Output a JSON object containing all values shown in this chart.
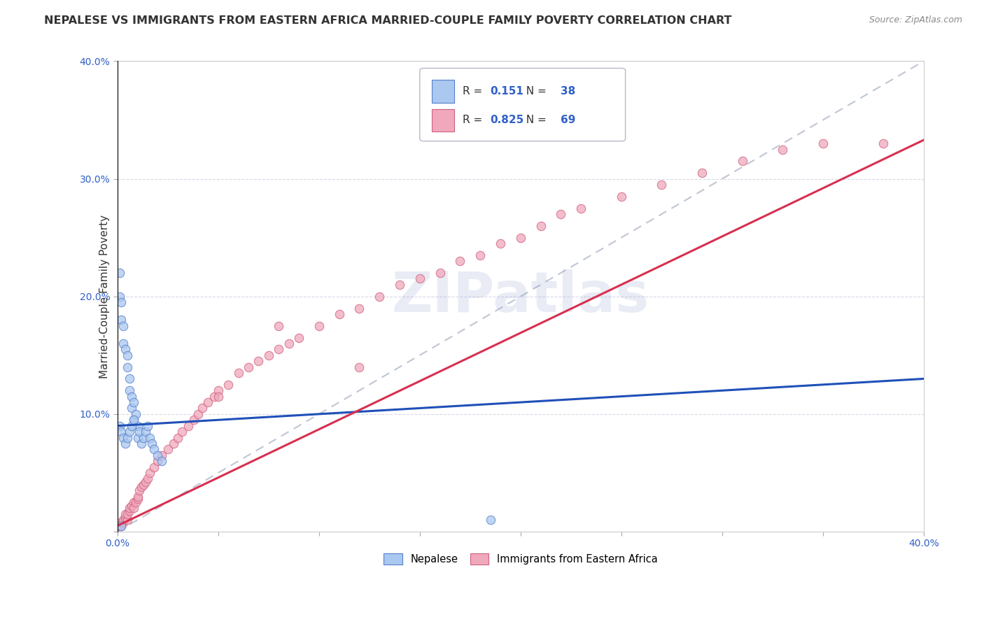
{
  "title": "NEPALESE VS IMMIGRANTS FROM EASTERN AFRICA MARRIED-COUPLE FAMILY POVERTY CORRELATION CHART",
  "source": "Source: ZipAtlas.com",
  "ylabel": "Married-Couple Family Poverty",
  "xlim": [
    0.0,
    0.4
  ],
  "ylim": [
    0.0,
    0.4
  ],
  "nepalese_color": "#aac8f0",
  "nepalese_edge_color": "#5580c8",
  "eastern_africa_color": "#f0a8bc",
  "eastern_africa_edge_color": "#d06080",
  "trend_blue": "#2050b8",
  "trend_pink": "#d83050",
  "ref_line_color": "#b0b8c8",
  "legend_R_color": "#3060c8",
  "legend_N_color": "#3060c8",
  "watermark_text": "ZIPatlas",
  "watermark_color": "#c8d8f0",
  "grid_color": "#d8d8e8",
  "background_color": "#ffffff",
  "legend_R_blue": "0.151",
  "legend_N_blue": "38",
  "legend_R_pink": "0.825",
  "legend_N_pink": "69",
  "title_fontsize": 11.5,
  "tick_fontsize": 10,
  "ylabel_fontsize": 11,
  "marker_size": 80
}
